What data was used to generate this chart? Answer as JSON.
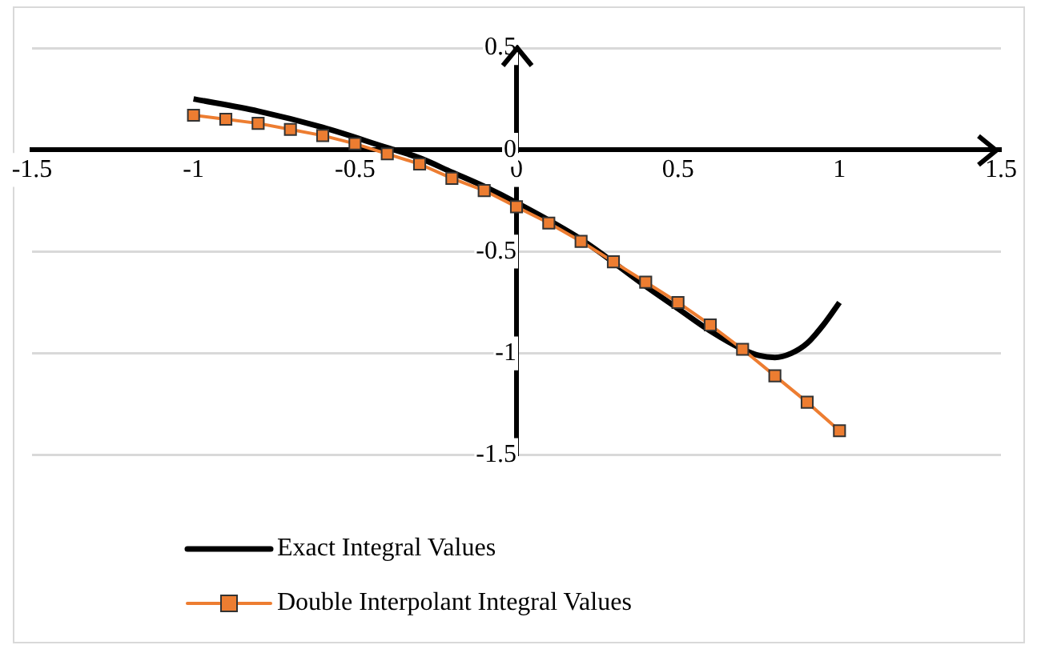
{
  "chart_data": {
    "type": "line",
    "xlim": [
      -1.5,
      1.5
    ],
    "xticks": [
      -1.5,
      -1,
      -0.5,
      0,
      0.5,
      1,
      1.5
    ],
    "ylim": [
      -1.5,
      0.5
    ],
    "yticks": [
      -1.5,
      -1,
      -0.5,
      0,
      0.5
    ],
    "grid": "y",
    "legend": "bottom",
    "series": [
      {
        "name": "Exact Integral Values",
        "color": "#000000",
        "marker": "none",
        "x": [
          -1,
          -0.8,
          -0.6,
          -0.4,
          -0.3,
          -0.2,
          -0.1,
          0,
          0.2,
          0.4,
          0.5,
          0.6,
          0.7,
          0.75,
          0.8,
          0.85,
          0.9,
          0.95,
          1
        ],
        "values": [
          0.25,
          0.19,
          0.11,
          0.01,
          -0.04,
          -0.11,
          -0.18,
          -0.26,
          -0.44,
          -0.67,
          -0.78,
          -0.89,
          -0.98,
          -1.01,
          -1.02,
          -1.0,
          -0.95,
          -0.86,
          -0.75
        ]
      },
      {
        "name": "Double Interpolant Integral Values",
        "color": "#ed7d31",
        "marker": "square",
        "x": [
          -1,
          -0.9,
          -0.8,
          -0.7,
          -0.6,
          -0.5,
          -0.4,
          -0.3,
          -0.2,
          -0.1,
          0,
          0.1,
          0.2,
          0.3,
          0.4,
          0.5,
          0.6,
          0.7,
          0.8,
          0.9,
          1
        ],
        "values": [
          0.17,
          0.15,
          0.13,
          0.1,
          0.07,
          0.03,
          -0.02,
          -0.07,
          -0.14,
          -0.2,
          -0.28,
          -0.36,
          -0.45,
          -0.55,
          -0.65,
          -0.75,
          -0.86,
          -0.98,
          -1.11,
          -1.24,
          -1.38
        ]
      }
    ]
  }
}
